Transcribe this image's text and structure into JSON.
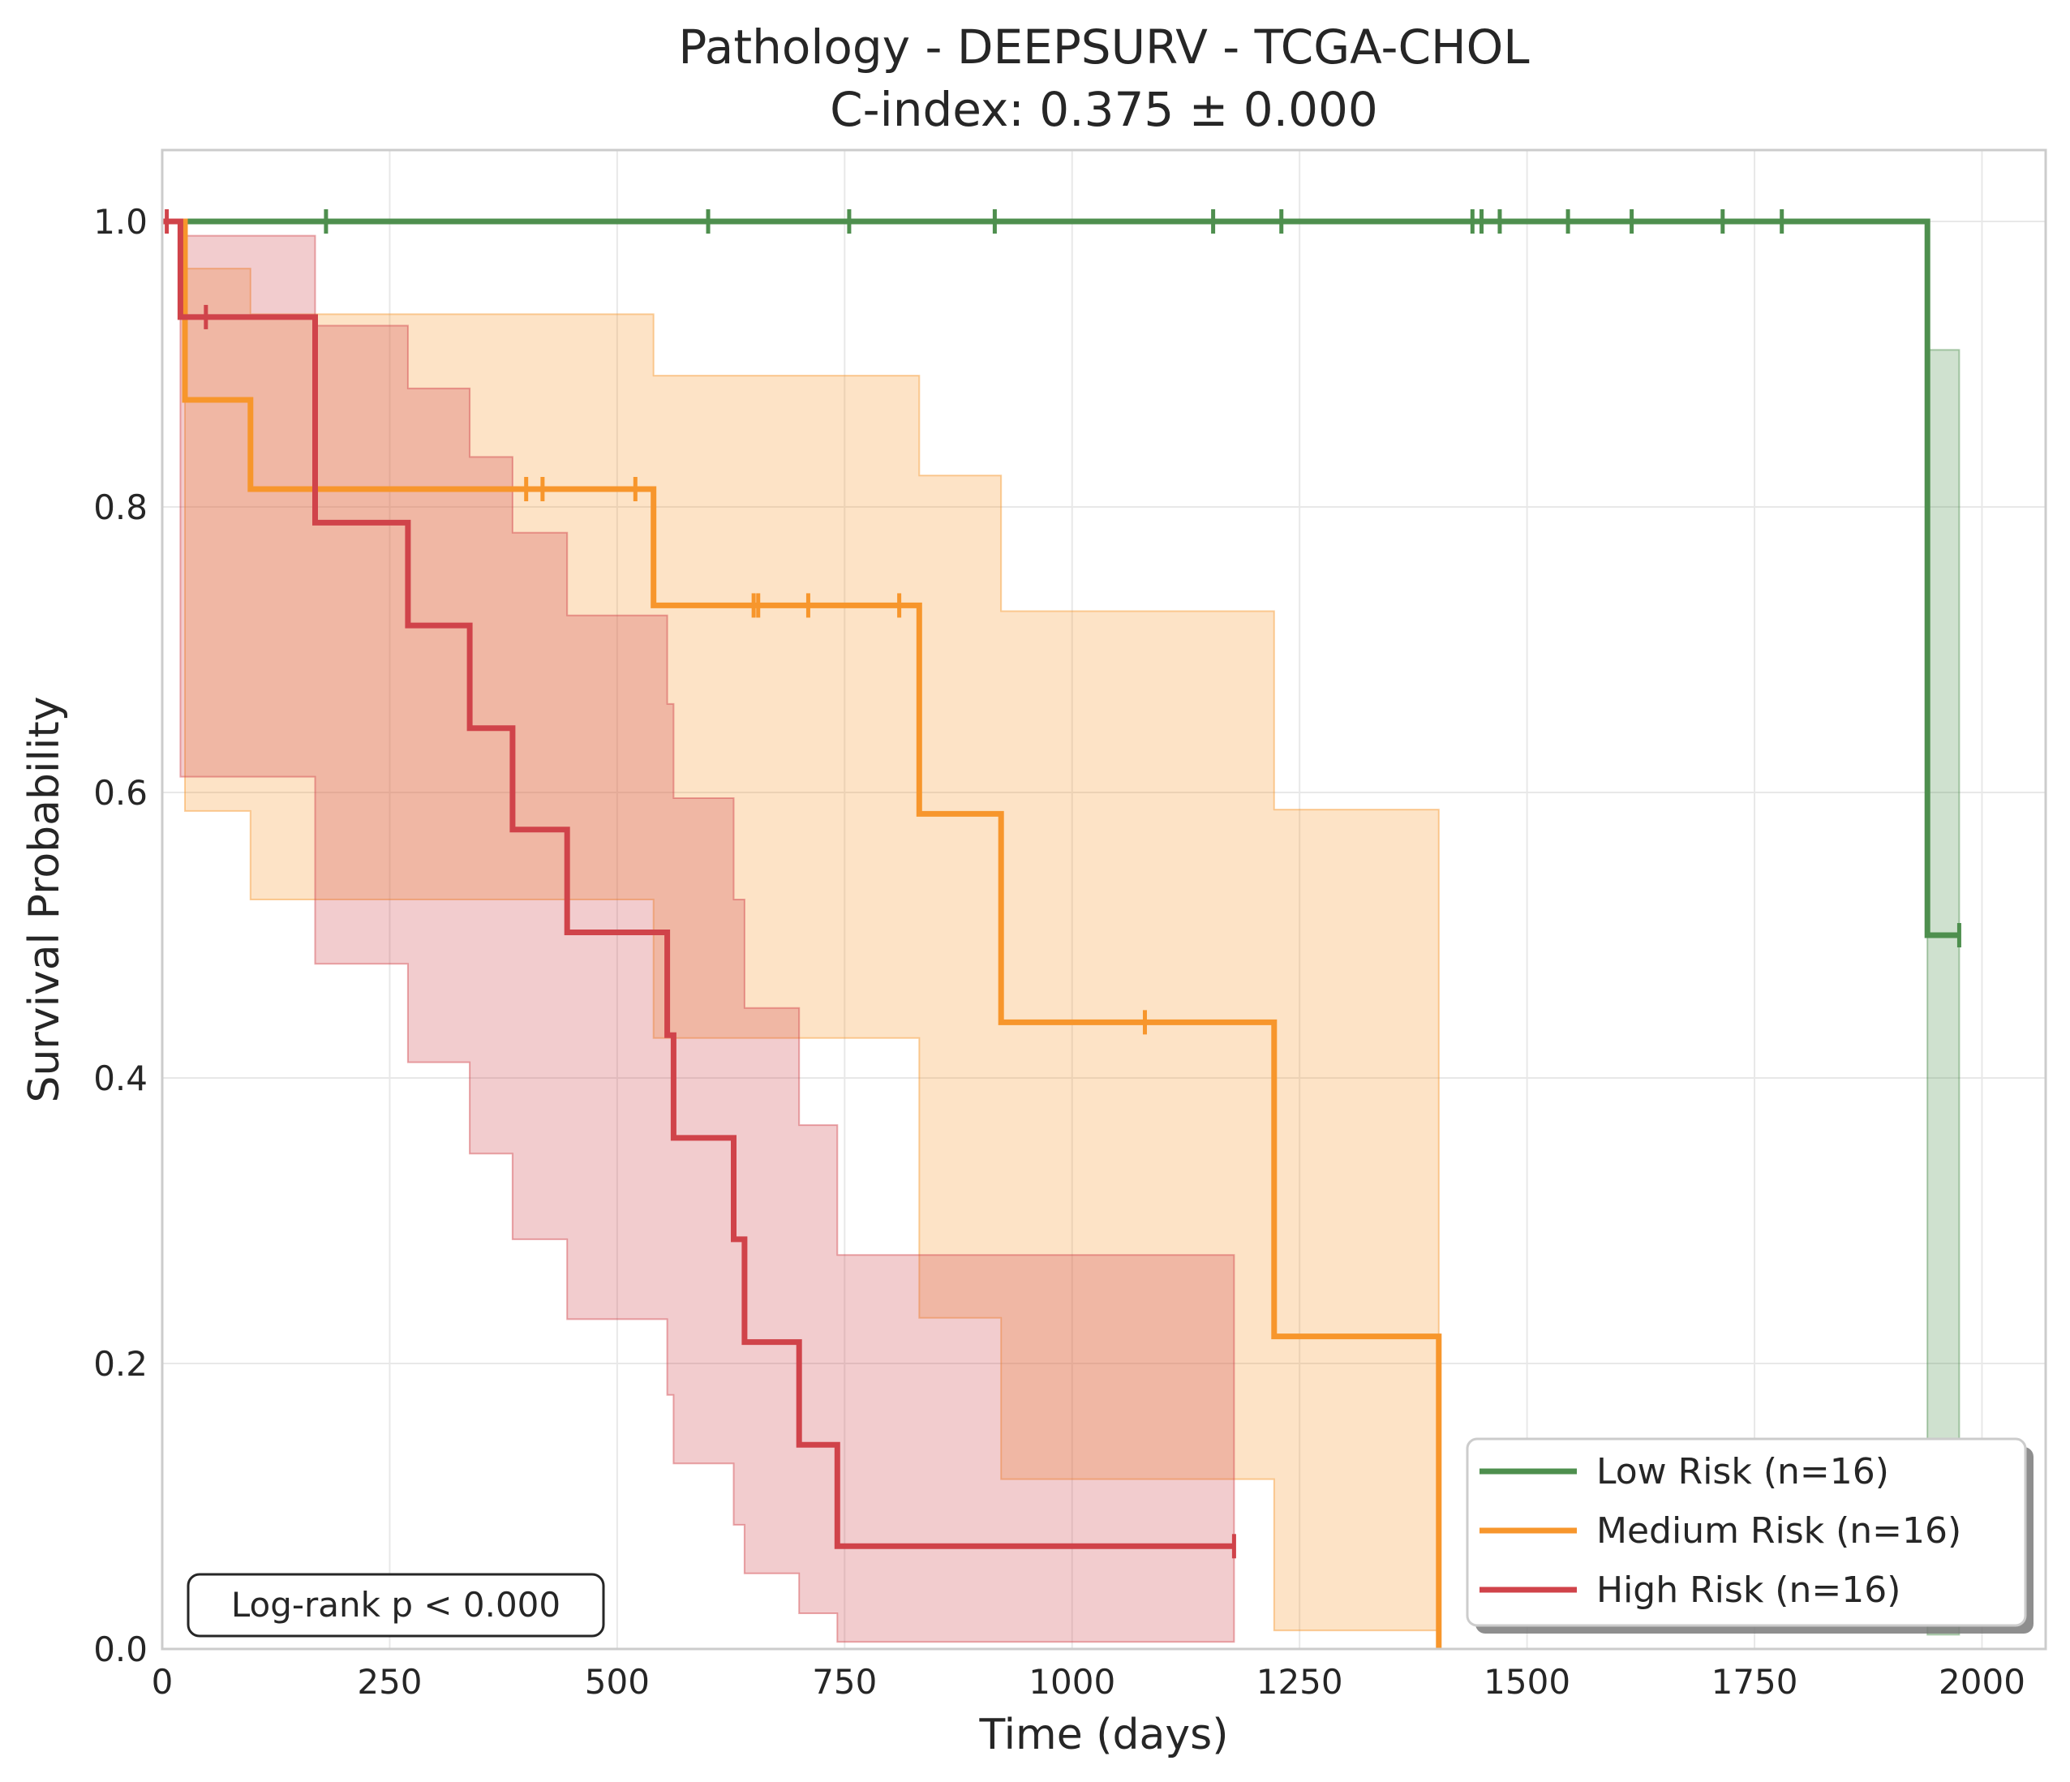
{
  "chart_data": {
    "type": "line",
    "subtype": "kaplan-meier",
    "title": "Pathology - DEEPSURV - TCGA-CHOL",
    "subtitle": "C-index: 0.375 ± 0.000",
    "xlabel": "Time (days)",
    "ylabel": "Survival Probability",
    "xlim": [
      0,
      2070
    ],
    "ylim": [
      0,
      1.05
    ],
    "xticks": [
      0,
      250,
      500,
      750,
      1000,
      1250,
      1500,
      1750,
      2000
    ],
    "yticks": [
      0.0,
      0.2,
      0.4,
      0.6,
      0.8,
      1.0
    ],
    "xtick_labels": [
      "0",
      "250",
      "500",
      "750",
      "1000",
      "1250",
      "1500",
      "1750",
      "2000"
    ],
    "ytick_labels": [
      "0.0",
      "0.2",
      "0.4",
      "0.6",
      "0.8",
      "1.0"
    ],
    "grid": true,
    "legend_position": "bottom-right",
    "annotation": "Log-rank p < 0.000",
    "series": [
      {
        "name": "Low Risk (n=16)",
        "color": "#4e8f4e",
        "x": [
          0,
          1940,
          1975
        ],
        "y": [
          1.0,
          0.5,
          0.5
        ],
        "ci_x": [
          1940,
          1975
        ],
        "ci_lower": [
          0.01,
          0.01
        ],
        "ci_upper": [
          0.91,
          0.91
        ],
        "censor_x": [
          180,
          600,
          755,
          915,
          1155,
          1230,
          1440,
          1450,
          1470,
          1545,
          1615,
          1715,
          1780,
          1975
        ],
        "censor_y": [
          1.0,
          1.0,
          1.0,
          1.0,
          1.0,
          1.0,
          1.0,
          1.0,
          1.0,
          1.0,
          1.0,
          1.0,
          1.0,
          0.5
        ]
      },
      {
        "name": "Medium Risk (n=16)",
        "color": "#f7962c",
        "x": [
          0,
          25,
          97,
          540,
          832,
          922,
          1222,
          1403
        ],
        "y": [
          1.0,
          0.875,
          0.8125,
          0.731,
          0.585,
          0.439,
          0.219,
          0.0
        ],
        "ci_x": [
          25,
          97,
          540,
          832,
          922,
          1222,
          1403
        ],
        "ci_lower": [
          0.587,
          0.525,
          0.428,
          0.232,
          0.119,
          0.013,
          0.013
        ],
        "ci_upper": [
          0.967,
          0.935,
          0.892,
          0.822,
          0.727,
          0.588,
          0.588
        ],
        "censor_x": [
          400,
          418,
          520,
          650,
          655,
          710,
          810,
          1080
        ],
        "censor_y": [
          0.8125,
          0.8125,
          0.8125,
          0.731,
          0.731,
          0.731,
          0.731,
          0.439
        ]
      },
      {
        "name": "High Risk (n=16)",
        "color": "#d0434a",
        "x": [
          0,
          20,
          168,
          270,
          338,
          385,
          445,
          555,
          562,
          628,
          640,
          700,
          742,
          1178
        ],
        "y": [
          1.0,
          0.933,
          0.789,
          0.717,
          0.645,
          0.574,
          0.502,
          0.43,
          0.358,
          0.287,
          0.215,
          0.143,
          0.072,
          0.072
        ],
        "ci_x": [
          20,
          168,
          270,
          338,
          385,
          445,
          555,
          562,
          628,
          640,
          700,
          742,
          1178
        ],
        "ci_lower": [
          0.611,
          0.48,
          0.411,
          0.347,
          0.287,
          0.231,
          0.178,
          0.13,
          0.087,
          0.053,
          0.025,
          0.005,
          0.005
        ],
        "ci_upper": [
          0.99,
          0.927,
          0.883,
          0.835,
          0.782,
          0.724,
          0.662,
          0.596,
          0.525,
          0.449,
          0.367,
          0.276,
          0.276
        ],
        "censor_x": [
          5,
          48,
          1178
        ],
        "censor_y": [
          1.0,
          0.933,
          0.072
        ]
      }
    ]
  }
}
